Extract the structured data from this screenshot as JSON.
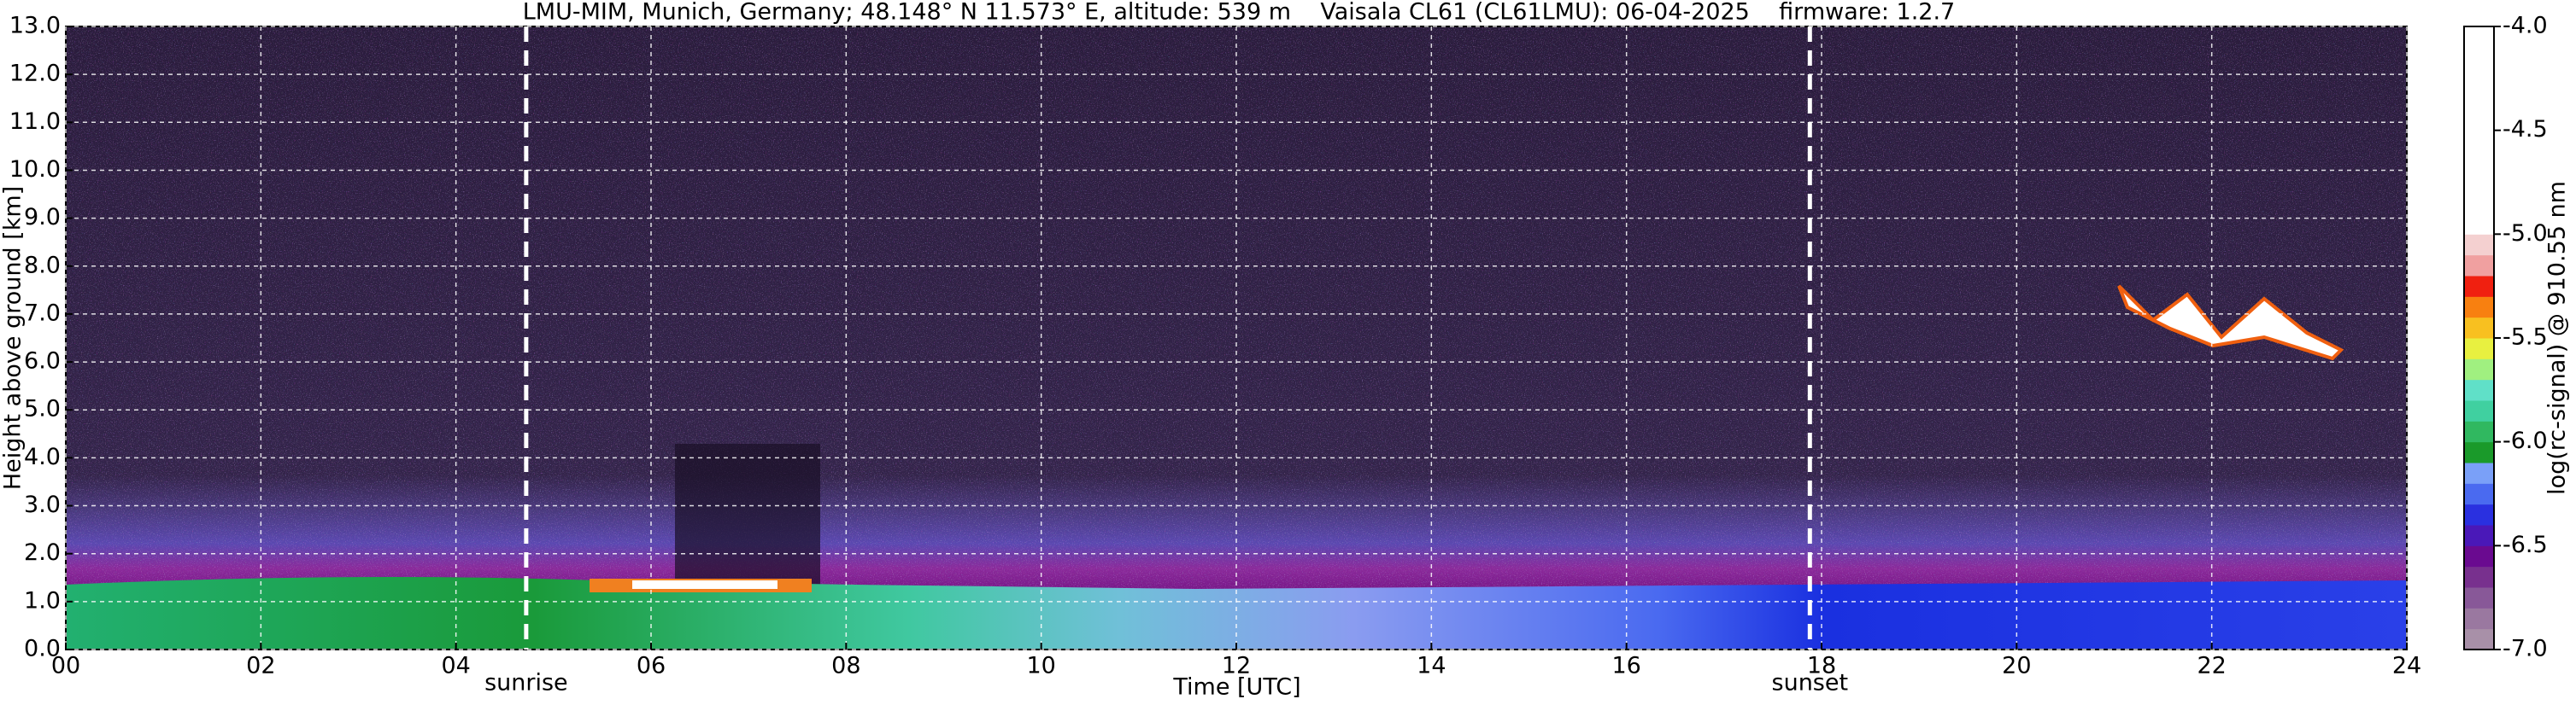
{
  "chart_data": {
    "type": "heatmap",
    "title": "LMU-MIM, Munich, Germany; 48.148° N 11.573° E, altitude: 539 m    Vaisala CL61 (CL61LMU): 06-04-2025    firmware: 1.2.7",
    "xlabel": "Time [UTC]",
    "ylabel": "Height above ground [km]",
    "xlim": [
      0,
      24
    ],
    "xticks": [
      {
        "value": 0,
        "label": "00"
      },
      {
        "value": 2,
        "label": "02"
      },
      {
        "value": 4,
        "label": "04"
      },
      {
        "value": 6,
        "label": "06"
      },
      {
        "value": 8,
        "label": "08"
      },
      10,
      12,
      14,
      16,
      18,
      20,
      22,
      24
    ],
    "ylim": [
      0,
      13
    ],
    "yticks": [
      {
        "value": 0,
        "label": "0.0"
      },
      {
        "value": 1,
        "label": "1.0"
      },
      {
        "value": 2,
        "label": "2.0"
      },
      {
        "value": 3,
        "label": "3.0"
      },
      {
        "value": 4,
        "label": "4.0"
      },
      {
        "value": 5,
        "label": "5.0"
      },
      {
        "value": 6,
        "label": "6.0"
      },
      {
        "value": 7,
        "label": "7.0"
      },
      {
        "value": 8,
        "label": "8.0"
      },
      {
        "value": 9,
        "label": "9.0"
      },
      {
        "value": 10,
        "label": "10.0"
      },
      {
        "value": 11,
        "label": "11.0"
      },
      {
        "value": 12,
        "label": "12.0"
      },
      {
        "value": 13,
        "label": "13.0"
      }
    ],
    "grid": true,
    "annotations": [
      {
        "text": "sunrise",
        "x": 4.72
      },
      {
        "text": "sunset",
        "x": 17.88
      }
    ],
    "colorbar": {
      "label": "log(rc-signal) @ 910.55 nm",
      "lim": [
        -7,
        -4
      ],
      "ticks": [
        {
          "value": -7,
          "label": "-7.0"
        },
        {
          "value": -6.5,
          "label": "-6.5"
        },
        {
          "value": -6,
          "label": "-6.0"
        },
        {
          "value": -5.5,
          "label": "-5.5"
        },
        {
          "value": -5,
          "label": "-5.0"
        },
        {
          "value": -4.5,
          "label": "-4.5"
        },
        {
          "value": -4,
          "label": "-4.0"
        }
      ],
      "colors": [
        "#a890a8",
        "#9a78a0",
        "#885898",
        "#78308e",
        "#6a0a90",
        "#4a18b8",
        "#2a30e0",
        "#4a6af0",
        "#7aa0f8",
        "#1a9a2a",
        "#30b860",
        "#40d0a0",
        "#60e0c8",
        "#a0f080",
        "#e8f040",
        "#f8c020",
        "#f88010",
        "#f02010",
        "#f0a0a0",
        "#f4d0d0",
        "#ffffff",
        "#ffffff",
        "#ffffff",
        "#ffffff",
        "#ffffff",
        "#ffffff",
        "#ffffff",
        "#ffffff",
        "#ffffff",
        "#ffffff"
      ]
    }
  }
}
